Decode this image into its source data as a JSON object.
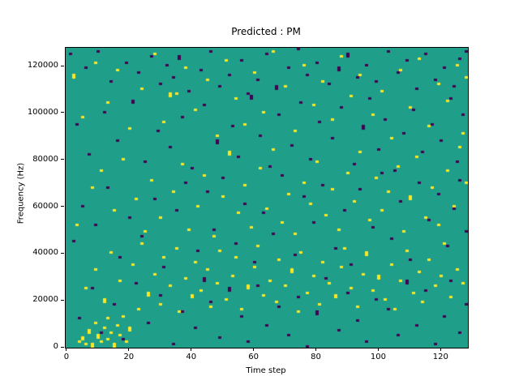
{
  "title": "Predicted : PM",
  "chart_data": {
    "type": "heatmap",
    "title": "Predicted : PM",
    "xlabel": "Time step",
    "ylabel": "Frequency (Hz)",
    "x_range": [
      0,
      129
    ],
    "y_range_hz": [
      0,
      128000
    ],
    "grid_size": {
      "cols": 129,
      "rows": 128
    },
    "freq_bin_hz": 1000,
    "xticks": [
      0,
      20,
      40,
      60,
      80,
      100,
      120
    ],
    "yticks": [
      0,
      20000,
      40000,
      60000,
      80000,
      100000,
      120000
    ],
    "grid": false,
    "legend_position": "none",
    "colors": {
      "background": "#1f9e89",
      "positive": "#fde725",
      "negative": "#440154"
    },
    "cells": {
      "yellow": [
        [
          4,
          2
        ],
        [
          5,
          3
        ],
        [
          5,
          4
        ],
        [
          6,
          1
        ],
        [
          7,
          6
        ],
        [
          7,
          7
        ],
        [
          8,
          0
        ],
        [
          8,
          1
        ],
        [
          9,
          10
        ],
        [
          10,
          4
        ],
        [
          10,
          5
        ],
        [
          11,
          2
        ],
        [
          12,
          8
        ],
        [
          13,
          3
        ],
        [
          13,
          12
        ],
        [
          14,
          6
        ],
        [
          15,
          0
        ],
        [
          15,
          1
        ],
        [
          16,
          9
        ],
        [
          17,
          5
        ],
        [
          18,
          13
        ],
        [
          19,
          2
        ],
        [
          20,
          7
        ],
        [
          20,
          8
        ],
        [
          6,
          25
        ],
        [
          9,
          33
        ],
        [
          12,
          19
        ],
        [
          12,
          20
        ],
        [
          14,
          40
        ],
        [
          17,
          28
        ],
        [
          21,
          35
        ],
        [
          23,
          16
        ],
        [
          24,
          44
        ],
        [
          26,
          22
        ],
        [
          26,
          23
        ],
        [
          28,
          31
        ],
        [
          30,
          18
        ],
        [
          31,
          38
        ],
        [
          33,
          26
        ],
        [
          35,
          42
        ],
        [
          36,
          15
        ],
        [
          38,
          29
        ],
        [
          40,
          21
        ],
        [
          40,
          22
        ],
        [
          41,
          36
        ],
        [
          43,
          24
        ],
        [
          45,
          33
        ],
        [
          46,
          17
        ],
        [
          48,
          27
        ],
        [
          49,
          41
        ],
        [
          51,
          20
        ],
        [
          53,
          30
        ],
        [
          54,
          38
        ],
        [
          56,
          16
        ],
        [
          58,
          25
        ],
        [
          58,
          26
        ],
        [
          60,
          34
        ],
        [
          61,
          43
        ],
        [
          63,
          22
        ],
        [
          65,
          28
        ],
        [
          67,
          19
        ],
        [
          68,
          37
        ],
        [
          70,
          26
        ],
        [
          72,
          32
        ],
        [
          72,
          33
        ],
        [
          74,
          15
        ],
        [
          75,
          40
        ],
        [
          77,
          23
        ],
        [
          79,
          30
        ],
        [
          81,
          18
        ],
        [
          82,
          36
        ],
        [
          84,
          27
        ],
        [
          86,
          21
        ],
        [
          86,
          22
        ],
        [
          88,
          34
        ],
        [
          89,
          42
        ],
        [
          91,
          25
        ],
        [
          93,
          17
        ],
        [
          95,
          31
        ],
        [
          96,
          39
        ],
        [
          96,
          40
        ],
        [
          98,
          24
        ],
        [
          100,
          29
        ],
        [
          100,
          30
        ],
        [
          102,
          20
        ],
        [
          104,
          35
        ],
        [
          105,
          16
        ],
        [
          107,
          28
        ],
        [
          109,
          41
        ],
        [
          111,
          23
        ],
        [
          113,
          32
        ],
        [
          114,
          19
        ],
        [
          116,
          37
        ],
        [
          118,
          26
        ],
        [
          120,
          30
        ],
        [
          121,
          44
        ],
        [
          123,
          21
        ],
        [
          125,
          33
        ],
        [
          127,
          27
        ],
        [
          3,
          52
        ],
        [
          8,
          68
        ],
        [
          11,
          75
        ],
        [
          15,
          58
        ],
        [
          18,
          80
        ],
        [
          22,
          63
        ],
        [
          25,
          49
        ],
        [
          27,
          71
        ],
        [
          30,
          55
        ],
        [
          34,
          66
        ],
        [
          37,
          78
        ],
        [
          39,
          50
        ],
        [
          42,
          60
        ],
        [
          44,
          73
        ],
        [
          47,
          47
        ],
        [
          50,
          64
        ],
        [
          52,
          82
        ],
        [
          52,
          83
        ],
        [
          55,
          57
        ],
        [
          57,
          69
        ],
        [
          59,
          51
        ],
        [
          62,
          76
        ],
        [
          64,
          59
        ],
        [
          66,
          84
        ],
        [
          69,
          53
        ],
        [
          71,
          65
        ],
        [
          73,
          48
        ],
        [
          76,
          70
        ],
        [
          78,
          61
        ],
        [
          80,
          79
        ],
        [
          83,
          56
        ],
        [
          85,
          67
        ],
        [
          87,
          50
        ],
        [
          90,
          74
        ],
        [
          92,
          62
        ],
        [
          94,
          83
        ],
        [
          97,
          54
        ],
        [
          99,
          72
        ],
        [
          101,
          58
        ],
        [
          103,
          66
        ],
        [
          106,
          77
        ],
        [
          108,
          49
        ],
        [
          110,
          63
        ],
        [
          110,
          64
        ],
        [
          112,
          81
        ],
        [
          115,
          55
        ],
        [
          117,
          68
        ],
        [
          119,
          52
        ],
        [
          122,
          75
        ],
        [
          124,
          60
        ],
        [
          126,
          85
        ],
        [
          128,
          70
        ],
        [
          2,
          115
        ],
        [
          2,
          116
        ],
        [
          5,
          98
        ],
        [
          9,
          121
        ],
        [
          13,
          104
        ],
        [
          16,
          118
        ],
        [
          20,
          93
        ],
        [
          24,
          110
        ],
        [
          28,
          125
        ],
        [
          31,
          96
        ],
        [
          33,
          107
        ],
        [
          33,
          108
        ],
        [
          35,
          108
        ],
        [
          38,
          119
        ],
        [
          41,
          101
        ],
        [
          45,
          114
        ],
        [
          48,
          90
        ],
        [
          51,
          122
        ],
        [
          54,
          106
        ],
        [
          57,
          95
        ],
        [
          60,
          117
        ],
        [
          63,
          100
        ],
        [
          66,
          126
        ],
        [
          70,
          111
        ],
        [
          73,
          92
        ],
        [
          76,
          120
        ],
        [
          79,
          103
        ],
        [
          82,
          113
        ],
        [
          85,
          97
        ],
        [
          88,
          124
        ],
        [
          91,
          107
        ],
        [
          94,
          116
        ],
        [
          98,
          99
        ],
        [
          101,
          109
        ],
        [
          104,
          89
        ],
        [
          107,
          118
        ],
        [
          110,
          102
        ],
        [
          113,
          123
        ],
        [
          116,
          94
        ],
        [
          119,
          112
        ],
        [
          122,
          105
        ],
        [
          125,
          120
        ],
        [
          127,
          91
        ],
        [
          128,
          115
        ]
      ],
      "purple": [
        [
          1,
          125
        ],
        [
          6,
          119
        ],
        [
          10,
          126
        ],
        [
          14,
          113
        ],
        [
          19,
          121
        ],
        [
          23,
          117
        ],
        [
          27,
          124
        ],
        [
          30,
          112
        ],
        [
          32,
          120
        ],
        [
          34,
          115
        ],
        [
          36,
          123
        ],
        [
          36,
          124
        ],
        [
          39,
          109
        ],
        [
          43,
          118
        ],
        [
          46,
          126
        ],
        [
          49,
          111
        ],
        [
          52,
          116
        ],
        [
          56,
          122
        ],
        [
          58,
          108
        ],
        [
          61,
          114
        ],
        [
          64,
          125
        ],
        [
          67,
          110
        ],
        [
          67,
          111
        ],
        [
          71,
          119
        ],
        [
          74,
          127
        ],
        [
          77,
          116
        ],
        [
          80,
          121
        ],
        [
          84,
          112
        ],
        [
          87,
          118
        ],
        [
          87,
          119
        ],
        [
          90,
          124
        ],
        [
          90,
          125
        ],
        [
          93,
          115
        ],
        [
          96,
          120
        ],
        [
          99,
          113
        ],
        [
          103,
          126
        ],
        [
          106,
          117
        ],
        [
          109,
          122
        ],
        [
          112,
          110
        ],
        [
          115,
          125
        ],
        [
          118,
          114
        ],
        [
          121,
          119
        ],
        [
          124,
          111
        ],
        [
          126,
          123
        ],
        [
          128,
          126
        ],
        [
          3,
          95
        ],
        [
          7,
          82
        ],
        [
          12,
          100
        ],
        [
          16,
          88
        ],
        [
          21,
          104
        ],
        [
          21,
          105
        ],
        [
          25,
          79
        ],
        [
          29,
          92
        ],
        [
          33,
          85
        ],
        [
          37,
          98
        ],
        [
          40,
          76
        ],
        [
          44,
          103
        ],
        [
          48,
          87
        ],
        [
          48,
          88
        ],
        [
          53,
          94
        ],
        [
          55,
          81
        ],
        [
          59,
          106
        ],
        [
          59,
          107
        ],
        [
          62,
          90
        ],
        [
          65,
          77
        ],
        [
          68,
          99
        ],
        [
          72,
          86
        ],
        [
          75,
          104
        ],
        [
          78,
          80
        ],
        [
          81,
          96
        ],
        [
          85,
          89
        ],
        [
          88,
          102
        ],
        [
          92,
          78
        ],
        [
          95,
          93
        ],
        [
          95,
          94
        ],
        [
          97,
          106
        ],
        [
          100,
          84
        ],
        [
          102,
          97
        ],
        [
          105,
          75
        ],
        [
          108,
          91
        ],
        [
          111,
          101
        ],
        [
          114,
          83
        ],
        [
          117,
          95
        ],
        [
          120,
          88
        ],
        [
          123,
          106
        ],
        [
          125,
          79
        ],
        [
          127,
          99
        ],
        [
          2,
          45
        ],
        [
          5,
          60
        ],
        [
          9,
          52
        ],
        [
          13,
          68
        ],
        [
          17,
          38
        ],
        [
          20,
          55
        ],
        [
          24,
          47
        ],
        [
          28,
          63
        ],
        [
          31,
          34
        ],
        [
          35,
          58
        ],
        [
          38,
          70
        ],
        [
          42,
          41
        ],
        [
          45,
          66
        ],
        [
          47,
          50
        ],
        [
          50,
          72
        ],
        [
          54,
          44
        ],
        [
          57,
          61
        ],
        [
          60,
          36
        ],
        [
          63,
          57
        ],
        [
          66,
          48
        ],
        [
          69,
          73
        ],
        [
          73,
          39
        ],
        [
          76,
          64
        ],
        [
          79,
          53
        ],
        [
          82,
          69
        ],
        [
          86,
          42
        ],
        [
          89,
          58
        ],
        [
          91,
          35
        ],
        [
          94,
          67
        ],
        [
          98,
          51
        ],
        [
          101,
          74
        ],
        [
          104,
          46
        ],
        [
          107,
          62
        ],
        [
          110,
          37
        ],
        [
          113,
          70
        ],
        [
          116,
          54
        ],
        [
          119,
          65
        ],
        [
          122,
          43
        ],
        [
          124,
          59
        ],
        [
          126,
          71
        ],
        [
          128,
          49
        ],
        [
          4,
          12
        ],
        [
          8,
          25
        ],
        [
          11,
          6
        ],
        [
          15,
          18
        ],
        [
          18,
          3
        ],
        [
          22,
          27
        ],
        [
          26,
          10
        ],
        [
          30,
          22
        ],
        [
          34,
          1
        ],
        [
          37,
          15
        ],
        [
          41,
          8
        ],
        [
          44,
          28
        ],
        [
          44,
          29
        ],
        [
          46,
          19
        ],
        [
          49,
          4
        ],
        [
          52,
          24
        ],
        [
          52,
          25
        ],
        [
          56,
          13
        ],
        [
          58,
          2
        ],
        [
          61,
          26
        ],
        [
          64,
          9
        ],
        [
          68,
          17
        ],
        [
          71,
          5
        ],
        [
          74,
          21
        ],
        [
          77,
          0
        ],
        [
          80,
          14
        ],
        [
          80,
          15
        ],
        [
          83,
          29
        ],
        [
          87,
          7
        ],
        [
          90,
          23
        ],
        [
          93,
          11
        ],
        [
          96,
          2
        ],
        [
          99,
          20
        ],
        [
          103,
          16
        ],
        [
          106,
          5
        ],
        [
          109,
          27
        ],
        [
          109,
          28
        ],
        [
          112,
          9
        ],
        [
          115,
          24
        ],
        [
          118,
          1
        ],
        [
          121,
          13
        ],
        [
          123,
          28
        ],
        [
          126,
          6
        ],
        [
          128,
          18
        ]
      ]
    }
  }
}
